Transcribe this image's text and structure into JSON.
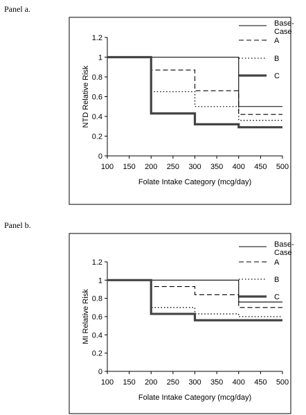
{
  "panels": [
    {
      "label": "Panel a."
    },
    {
      "label": "Panel b."
    }
  ],
  "chart_data": [
    {
      "type": "line",
      "step": true,
      "xlabel": "Folate Intake Category (mcg/day)",
      "ylabel": "NTD Relative Risk",
      "xlim": [
        100,
        500
      ],
      "ylim": [
        0,
        1.2
      ],
      "xticks": [
        100,
        150,
        200,
        250,
        300,
        350,
        400,
        450,
        500
      ],
      "yticks": [
        0,
        0.2,
        0.4,
        0.6,
        0.8,
        1,
        1.2
      ],
      "grid": false,
      "legend_position": "top-right",
      "series": [
        {
          "name": "Base-Case",
          "style": "solid",
          "x": [
            100,
            200,
            300,
            400,
            500
          ],
          "y": [
            1.0,
            1.0,
            1.0,
            0.5,
            0.5
          ]
        },
        {
          "name": "A",
          "style": "dashed",
          "x": [
            100,
            200,
            300,
            400,
            500
          ],
          "y": [
            1.0,
            0.87,
            0.66,
            0.42,
            0.42
          ]
        },
        {
          "name": "B",
          "style": "dotted",
          "x": [
            100,
            200,
            300,
            400,
            500
          ],
          "y": [
            1.0,
            0.65,
            0.5,
            0.36,
            0.36
          ]
        },
        {
          "name": "C",
          "style": "thick",
          "x": [
            100,
            200,
            300,
            400,
            500
          ],
          "y": [
            1.0,
            0.43,
            0.32,
            0.29,
            0.29
          ]
        }
      ]
    },
    {
      "type": "line",
      "step": true,
      "xlabel": "Folate Intake Category (mcg/day)",
      "ylabel": "MI Relative Risk",
      "xlim": [
        100,
        500
      ],
      "ylim": [
        0,
        1.2
      ],
      "xticks": [
        100,
        150,
        200,
        250,
        300,
        350,
        400,
        450,
        500
      ],
      "yticks": [
        0,
        0.2,
        0.4,
        0.6,
        0.8,
        1,
        1.2
      ],
      "grid": false,
      "legend_position": "top-right",
      "series": [
        {
          "name": "Base-Case",
          "style": "solid",
          "x": [
            100,
            200,
            300,
            400,
            500
          ],
          "y": [
            1.0,
            1.0,
            1.0,
            0.76,
            0.76
          ]
        },
        {
          "name": "A",
          "style": "dashed",
          "x": [
            100,
            200,
            300,
            400,
            500
          ],
          "y": [
            1.0,
            0.93,
            0.84,
            0.7,
            0.7
          ]
        },
        {
          "name": "B",
          "style": "dotted",
          "x": [
            100,
            200,
            300,
            400,
            500
          ],
          "y": [
            1.0,
            0.7,
            0.63,
            0.6,
            0.6
          ]
        },
        {
          "name": "C",
          "style": "thick",
          "x": [
            100,
            200,
            300,
            400,
            500
          ],
          "y": [
            1.0,
            0.63,
            0.56,
            0.56,
            0.56
          ]
        }
      ]
    }
  ]
}
